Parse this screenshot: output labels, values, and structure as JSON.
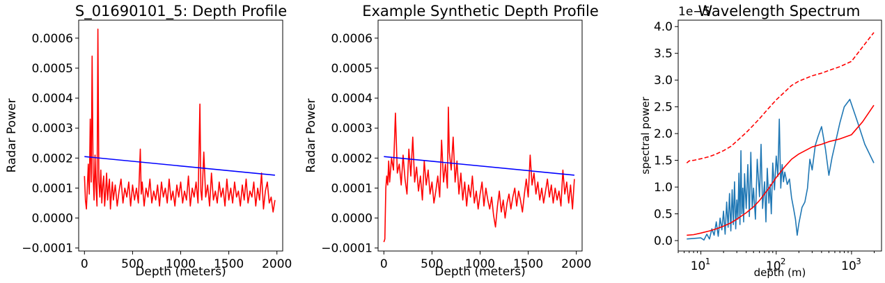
{
  "chart_data": [
    {
      "type": "line",
      "title": "S_01690101_5: Depth Profile",
      "xlabel": "Depth (meters)",
      "ylabel": "Radar Power",
      "xlim": [
        -60,
        2060
      ],
      "ylim": [
        -0.00011,
        0.00066
      ],
      "x_ticks": [
        0,
        500,
        1000,
        1500,
        2000
      ],
      "x_tick_labels": [
        "0",
        "500",
        "1000",
        "1500",
        "2000"
      ],
      "y_ticks": [
        -0.0001,
        0.0,
        0.0001,
        0.0002,
        0.0003,
        0.0004,
        0.0005,
        0.0006
      ],
      "y_tick_labels": [
        "−0.0001",
        "0.0000",
        "0.0001",
        "0.0002",
        "0.0003",
        "0.0004",
        "0.0005",
        "0.0006"
      ],
      "series": [
        {
          "color": "#ff0000",
          "x": [
            0,
            10,
            20,
            30,
            40,
            50,
            60,
            70,
            80,
            90,
            100,
            110,
            120,
            130,
            140,
            150,
            160,
            170,
            180,
            190,
            200,
            210,
            220,
            230,
            240,
            250,
            260,
            270,
            280,
            290,
            300,
            320,
            340,
            360,
            380,
            400,
            420,
            440,
            460,
            480,
            500,
            520,
            540,
            560,
            580,
            590,
            600,
            620,
            640,
            660,
            680,
            700,
            720,
            740,
            760,
            780,
            800,
            820,
            840,
            860,
            880,
            900,
            920,
            940,
            960,
            980,
            1000,
            1020,
            1040,
            1060,
            1080,
            1100,
            1120,
            1140,
            1160,
            1180,
            1200,
            1210,
            1220,
            1240,
            1260,
            1280,
            1300,
            1320,
            1340,
            1360,
            1380,
            1400,
            1420,
            1440,
            1460,
            1480,
            1500,
            1520,
            1540,
            1560,
            1580,
            1600,
            1620,
            1640,
            1660,
            1680,
            1700,
            1720,
            1740,
            1760,
            1780,
            1800,
            1820,
            1840,
            1860,
            1880,
            1900,
            1920,
            1940,
            1960,
            1980
          ],
          "y": [
            0.00014,
            6e-05,
            3e-05,
            0.0001,
            0.00018,
            8e-05,
            0.00033,
            0.00012,
            0.00054,
            0.00015,
            6e-05,
            0.00021,
            0.0001,
            4e-05,
            0.00063,
            0.00012,
            7e-05,
            0.00016,
            5e-05,
            0.00011,
            0.00014,
            4e-05,
            9e-05,
            0.00015,
            6e-05,
            0.0001,
            0.00013,
            3e-05,
            8e-05,
            0.00012,
            6e-05,
            0.00011,
            4e-05,
            9e-05,
            0.00013,
            5e-05,
            0.0001,
            7e-05,
            0.00012,
            4e-05,
            0.00011,
            6e-05,
            0.0001,
            5e-05,
            0.00023,
            8e-05,
            0.00012,
            4e-05,
            0.0001,
            7e-05,
            0.00013,
            5e-05,
            9e-05,
            6e-05,
            0.00011,
            4e-05,
            0.00012,
            7e-05,
            0.0001,
            5e-05,
            0.00013,
            6e-05,
            9e-05,
            4e-05,
            0.00011,
            7e-05,
            0.00012,
            5e-05,
            9e-05,
            6e-05,
            0.00014,
            4e-05,
            0.0001,
            7e-05,
            0.00012,
            5e-05,
            0.00038,
            9e-05,
            6e-05,
            0.00022,
            7e-05,
            0.00011,
            4e-05,
            0.00015,
            6e-05,
            9e-05,
            5e-05,
            0.00012,
            7e-05,
            0.0001,
            4e-05,
            0.00013,
            6e-05,
            0.0001,
            5e-05,
            0.00012,
            7e-05,
            9e-05,
            4e-05,
            0.00011,
            6e-05,
            0.00013,
            5e-05,
            9e-05,
            7e-05,
            0.00012,
            4e-05,
            0.0001,
            6e-05,
            0.00015,
            3e-05,
            9e-05,
            0.00012,
            5e-05,
            7e-05,
            2e-05,
            6e-05
          ]
        },
        {
          "color": "#0000ff",
          "x": [
            0,
            1980
          ],
          "y": [
            0.000205,
            0.000143
          ]
        }
      ]
    },
    {
      "type": "line",
      "title": "Example Synthetic Depth Profile",
      "xlabel": "Depth (meters)",
      "ylabel": "Radar Power",
      "xlim": [
        -60,
        2060
      ],
      "ylim": [
        -0.00011,
        0.00066
      ],
      "x_ticks": [
        0,
        500,
        1000,
        1500,
        2000
      ],
      "x_tick_labels": [
        "0",
        "500",
        "1000",
        "1500",
        "2000"
      ],
      "y_ticks": [
        -0.0001,
        0.0,
        0.0001,
        0.0002,
        0.0003,
        0.0004,
        0.0005,
        0.0006
      ],
      "y_tick_labels": [
        "−0.0001",
        "0.0000",
        "0.0001",
        "0.0002",
        "0.0003",
        "0.0004",
        "0.0005",
        "0.0006"
      ],
      "series": [
        {
          "color": "#ff0000",
          "x": [
            0,
            10,
            20,
            30,
            40,
            50,
            60,
            80,
            100,
            120,
            140,
            160,
            180,
            200,
            220,
            240,
            260,
            280,
            300,
            320,
            340,
            360,
            380,
            400,
            420,
            440,
            460,
            480,
            500,
            520,
            540,
            560,
            580,
            600,
            620,
            640,
            660,
            670,
            680,
            700,
            720,
            740,
            760,
            780,
            800,
            820,
            840,
            860,
            880,
            900,
            920,
            940,
            960,
            980,
            1000,
            1020,
            1040,
            1060,
            1080,
            1100,
            1120,
            1140,
            1160,
            1180,
            1200,
            1220,
            1240,
            1260,
            1280,
            1300,
            1320,
            1340,
            1360,
            1380,
            1400,
            1420,
            1440,
            1460,
            1480,
            1500,
            1520,
            1540,
            1560,
            1580,
            1600,
            1620,
            1640,
            1660,
            1680,
            1700,
            1720,
            1740,
            1760,
            1780,
            1800,
            1820,
            1840,
            1860,
            1880,
            1900,
            1920,
            1940,
            1960,
            1980
          ],
          "y": [
            -8e-05,
            -7e-05,
            0.0001,
            0.00014,
            0.00011,
            0.00019,
            0.00012,
            0.0002,
            0.00016,
            0.00035,
            0.00015,
            0.00018,
            0.00011,
            0.00021,
            0.00013,
            8e-05,
            0.00023,
            0.00014,
            0.00027,
            0.00012,
            0.00017,
            9e-05,
            0.00014,
            6e-05,
            0.00019,
            0.00011,
            0.00016,
            8e-05,
            0.00012,
            5e-05,
            9e-05,
            0.00014,
            7e-05,
            0.00026,
            0.00012,
            0.00018,
            0.0001,
            0.00037,
            0.00022,
            0.00016,
            0.00027,
            0.00012,
            0.00019,
            8e-05,
            0.00015,
            6e-05,
            0.00012,
            4e-05,
            0.00011,
            7e-05,
            0.00014,
            5e-05,
            9e-05,
            3e-05,
            8e-05,
            0.00012,
            4e-05,
            0.0001,
            6e-05,
            3e-05,
            7e-05,
            1e-05,
            -3e-05,
            4e-05,
            9e-05,
            2e-05,
            6e-05,
            0.0,
            5e-05,
            8e-05,
            3e-05,
            7e-05,
            0.0001,
            4e-05,
            9e-05,
            6e-05,
            2e-05,
            8e-05,
            0.00013,
            7e-05,
            0.00021,
            0.00011,
            0.00015,
            8e-05,
            0.00012,
            6e-05,
            0.0001,
            5e-05,
            9e-05,
            0.00013,
            7e-05,
            0.00011,
            5e-05,
            0.0001,
            6e-05,
            9e-05,
            4e-05,
            0.00016,
            8e-05,
            0.00012,
            5e-05,
            0.00011,
            3e-05,
            0.00013
          ]
        },
        {
          "color": "#0000ff",
          "x": [
            0,
            1980
          ],
          "y": [
            0.000205,
            0.000143
          ]
        }
      ]
    },
    {
      "type": "line",
      "title": "Wavelength Spectrum",
      "xlabel": "depth (m)",
      "ylabel": "spectral power",
      "xscale": "log",
      "xlim": [
        5,
        2500
      ],
      "ylim": [
        -1.95e-06,
        4.12e-05
      ],
      "offset_text": "1e−5",
      "x_ticks": [
        10,
        100,
        1000
      ],
      "x_tick_labels": [
        {
          "base": "10",
          "exp": "1"
        },
        {
          "base": "10",
          "exp": "2"
        },
        {
          "base": "10",
          "exp": "3"
        }
      ],
      "y_ticks": [
        0,
        5e-06,
        1e-05,
        1.5e-05,
        2e-05,
        2.5e-05,
        3e-05,
        3.5e-05,
        4e-05
      ],
      "y_tick_labels": [
        "0.0",
        "0.5",
        "1.0",
        "1.5",
        "2.0",
        "2.5",
        "3.0",
        "3.5",
        "4.0"
      ],
      "series": [
        {
          "color": "#1f77b4",
          "x": [
            6.5,
            8,
            10,
            11,
            12,
            13,
            14,
            15,
            16,
            17,
            18,
            19,
            20,
            21,
            22,
            23,
            24,
            25,
            26,
            27,
            28,
            29,
            30,
            31,
            32,
            33,
            34,
            35,
            36,
            37,
            38,
            40,
            42,
            44,
            46,
            48,
            50,
            53,
            56,
            60,
            63,
            66,
            70,
            73,
            76,
            80,
            83,
            86,
            90,
            95,
            100,
            105,
            110,
            115,
            120,
            125,
            130,
            140,
            150,
            160,
            170,
            180,
            190,
            200,
            220,
            240,
            260,
            280,
            300,
            330,
            360,
            400,
            450,
            500,
            550,
            600,
            700,
            800,
            950,
            1200,
            1500,
            1980
          ],
          "y": [
            3e-07,
            4e-07,
            5e-07,
            1e-07,
            1.2e-06,
            3e-07,
            2.2e-06,
            1e-06,
            3.5e-06,
            8e-07,
            4.2e-06,
            2e-06,
            5.5e-06,
            1.2e-06,
            7.2e-06,
            2.5e-06,
            8.8e-06,
            1.8e-06,
            9.5e-06,
            3e-06,
            1.1e-05,
            2.2e-06,
            7.6e-06,
            4e-06,
            1.26e-05,
            3e-06,
            1.68e-05,
            5e-06,
            9.8e-06,
            3.5e-06,
            1.25e-05,
            6e-06,
            1.42e-05,
            4.5e-06,
            1.65e-05,
            6e-06,
            9.8e-06,
            4e-06,
            1.52e-05,
            8.2e-06,
            1.8e-05,
            6e-06,
            1.1e-05,
            3.5e-06,
            1.35e-05,
            7e-06,
            1.05e-05,
            5e-06,
            1.45e-05,
            9.5e-06,
            1.58e-05,
            1.2e-05,
            2.27e-05,
            9.8e-06,
            1.42e-05,
            1.1e-05,
            1.28e-05,
            1.05e-05,
            1.15e-05,
            8e-06,
            6e-06,
            4e-06,
            1e-06,
            3.2e-06,
            6.2e-06,
            7.2e-06,
            9.8e-06,
            1.52e-05,
            1.32e-05,
            1.78e-05,
            1.95e-05,
            2.13e-05,
            1.72e-05,
            1.22e-05,
            1.55e-05,
            1.78e-05,
            2.2e-05,
            2.5e-05,
            2.64e-05,
            2.22e-05,
            1.8e-05,
            1.45e-05
          ]
        },
        {
          "color": "#ff0000",
          "x": [
            6.5,
            8,
            10,
            13,
            16,
            20,
            25,
            30,
            40,
            50,
            60,
            80,
            100,
            130,
            160,
            200,
            300,
            400,
            500,
            700,
            1000,
            1400,
            1980
          ],
          "y": [
            1e-06,
            1.1e-06,
            1.4e-06,
            1.8e-06,
            2.2e-06,
            2.7e-06,
            3.3e-06,
            4e-06,
            5.2e-06,
            6.3e-06,
            7.5e-06,
            9.8e-06,
            1.18e-05,
            1.38e-05,
            1.52e-05,
            1.62e-05,
            1.75e-05,
            1.8e-05,
            1.85e-05,
            1.9e-05,
            1.98e-05,
            2.22e-05,
            2.53e-05
          ]
        },
        {
          "color": "#ff0000",
          "dashed": true,
          "x": [
            6.5,
            7,
            8,
            10,
            13,
            16,
            20,
            25,
            30,
            40,
            50,
            60,
            80,
            100,
            130,
            160,
            200,
            300,
            400,
            500,
            700,
            1000,
            1400,
            1980
          ],
          "y": [
            1.45e-05,
            1.49e-05,
            1.5e-05,
            1.53e-05,
            1.57e-05,
            1.62e-05,
            1.68e-05,
            1.76e-05,
            1.86e-05,
            2.02e-05,
            2.16e-05,
            2.28e-05,
            2.48e-05,
            2.63e-05,
            2.78e-05,
            2.9e-05,
            2.98e-05,
            3.08e-05,
            3.13e-05,
            3.18e-05,
            3.25e-05,
            3.35e-05,
            3.62e-05,
            3.89e-05
          ]
        }
      ]
    }
  ]
}
